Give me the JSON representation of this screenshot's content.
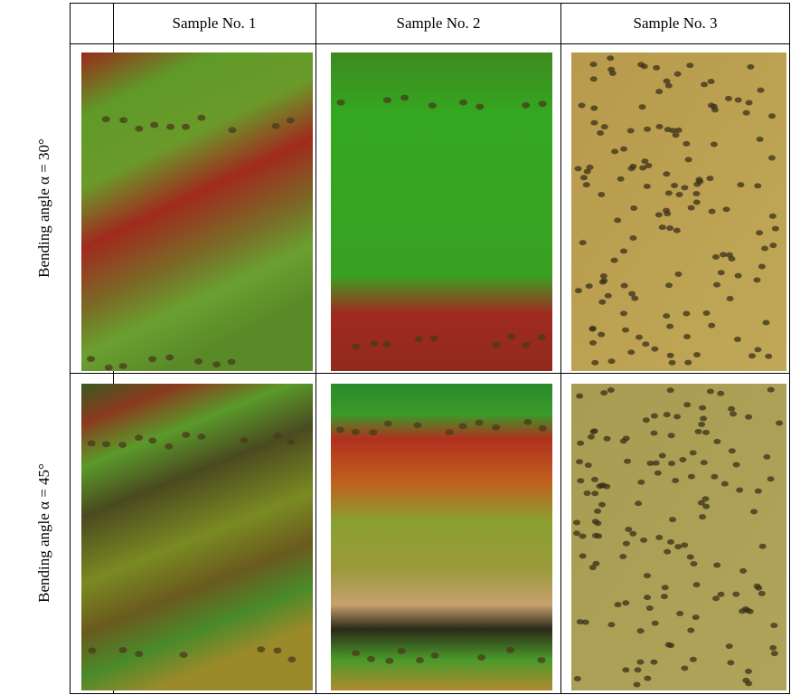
{
  "table": {
    "header": [
      "Sample No. 1",
      "Sample No. 2",
      "Sample No. 3"
    ],
    "rows": [
      {
        "label": "Bending angle α = 30°"
      },
      {
        "label": "Bending angle α = 45°"
      }
    ]
  }
}
